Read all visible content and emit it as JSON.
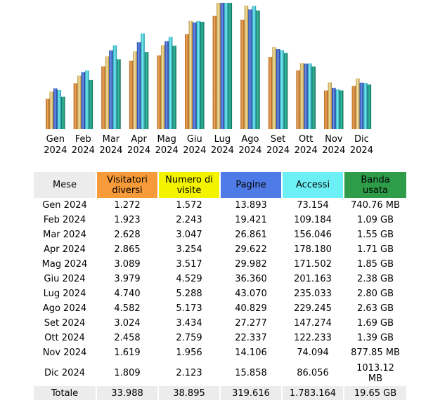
{
  "colors": {
    "visitors": "#d9883f",
    "visits": "#e3c878",
    "pages": "#3f67d0",
    "hits": "#38c9d8",
    "bandwidth": "#1d9880",
    "header_month": "#ececec",
    "header_visitors": "#f79a3a",
    "header_visits": "#f3f300",
    "header_pages": "#4f7be6",
    "header_hits": "#6cf0f5",
    "header_bandwidth": "#2e9c49"
  },
  "chart_data": {
    "type": "bar",
    "title": "",
    "categories": [
      "Gen",
      "Feb",
      "Mar",
      "Apr",
      "Mag",
      "Giu",
      "Lug",
      "Ago",
      "Set",
      "Ott",
      "Nov",
      "Dic"
    ],
    "category_years": [
      "2024",
      "2024",
      "2024",
      "2024",
      "2024",
      "2024",
      "2024",
      "2024",
      "2024",
      "2024",
      "2024",
      "2024"
    ],
    "series": [
      {
        "name": "Visitatori diversi",
        "values": [
          1272,
          1923,
          2628,
          2865,
          3089,
          3979,
          4740,
          4582,
          3024,
          2458,
          1619,
          1809
        ]
      },
      {
        "name": "Numero di visite",
        "values": [
          1572,
          2243,
          3047,
          3254,
          3517,
          4529,
          5288,
          5173,
          3434,
          2759,
          1956,
          2123
        ]
      },
      {
        "name": "Pagine",
        "values": [
          13893,
          19421,
          26861,
          29622,
          29982,
          36360,
          43070,
          40829,
          27277,
          22337,
          14106,
          15858
        ]
      },
      {
        "name": "Accessi",
        "values": [
          73154,
          109184,
          156046,
          178180,
          171502,
          201163,
          235033,
          229245,
          147274,
          122233,
          74094,
          86056
        ]
      },
      {
        "name": "Banda usata (GB)",
        "values": [
          0.72,
          1.09,
          1.55,
          1.71,
          1.85,
          2.38,
          2.8,
          2.63,
          1.69,
          1.39,
          0.86,
          0.99
        ]
      }
    ],
    "scale_groups": [
      [
        0,
        1
      ],
      [
        2
      ],
      [
        3
      ],
      [
        4
      ]
    ],
    "grid": false,
    "legend": "none"
  },
  "table": {
    "headers": {
      "month": "Mese",
      "visitors": "Visitatori diversi",
      "visits": "Numero di visite",
      "pages": "Pagine",
      "hits": "Accessi",
      "bandwidth": "Banda usata"
    },
    "rows": [
      {
        "month": "Gen 2024",
        "visitors": "1.272",
        "visits": "1.572",
        "pages": "13.893",
        "hits": "73.154",
        "bandwidth": "740.76 MB"
      },
      {
        "month": "Feb 2024",
        "visitors": "1.923",
        "visits": "2.243",
        "pages": "19.421",
        "hits": "109.184",
        "bandwidth": "1.09 GB"
      },
      {
        "month": "Mar 2024",
        "visitors": "2.628",
        "visits": "3.047",
        "pages": "26.861",
        "hits": "156.046",
        "bandwidth": "1.55 GB"
      },
      {
        "month": "Apr 2024",
        "visitors": "2.865",
        "visits": "3.254",
        "pages": "29.622",
        "hits": "178.180",
        "bandwidth": "1.71 GB"
      },
      {
        "month": "Mag 2024",
        "visitors": "3.089",
        "visits": "3.517",
        "pages": "29.982",
        "hits": "171.502",
        "bandwidth": "1.85 GB"
      },
      {
        "month": "Giu 2024",
        "visitors": "3.979",
        "visits": "4.529",
        "pages": "36.360",
        "hits": "201.163",
        "bandwidth": "2.38 GB"
      },
      {
        "month": "Lug 2024",
        "visitors": "4.740",
        "visits": "5.288",
        "pages": "43.070",
        "hits": "235.033",
        "bandwidth": "2.80 GB"
      },
      {
        "month": "Ago 2024",
        "visitors": "4.582",
        "visits": "5.173",
        "pages": "40.829",
        "hits": "229.245",
        "bandwidth": "2.63 GB"
      },
      {
        "month": "Set 2024",
        "visitors": "3.024",
        "visits": "3.434",
        "pages": "27.277",
        "hits": "147.274",
        "bandwidth": "1.69 GB"
      },
      {
        "month": "Ott 2024",
        "visitors": "2.458",
        "visits": "2.759",
        "pages": "22.337",
        "hits": "122.233",
        "bandwidth": "1.39 GB"
      },
      {
        "month": "Nov 2024",
        "visitors": "1.619",
        "visits": "1.956",
        "pages": "14.106",
        "hits": "74.094",
        "bandwidth": "877.85 MB"
      },
      {
        "month": "Dic 2024",
        "visitors": "1.809",
        "visits": "2.123",
        "pages": "15.858",
        "hits": "86.056",
        "bandwidth": "1013.12 MB"
      }
    ],
    "total": {
      "month": "Totale",
      "visitors": "33.988",
      "visits": "38.895",
      "pages": "319.616",
      "hits": "1.783.164",
      "bandwidth": "19.65 GB"
    }
  }
}
